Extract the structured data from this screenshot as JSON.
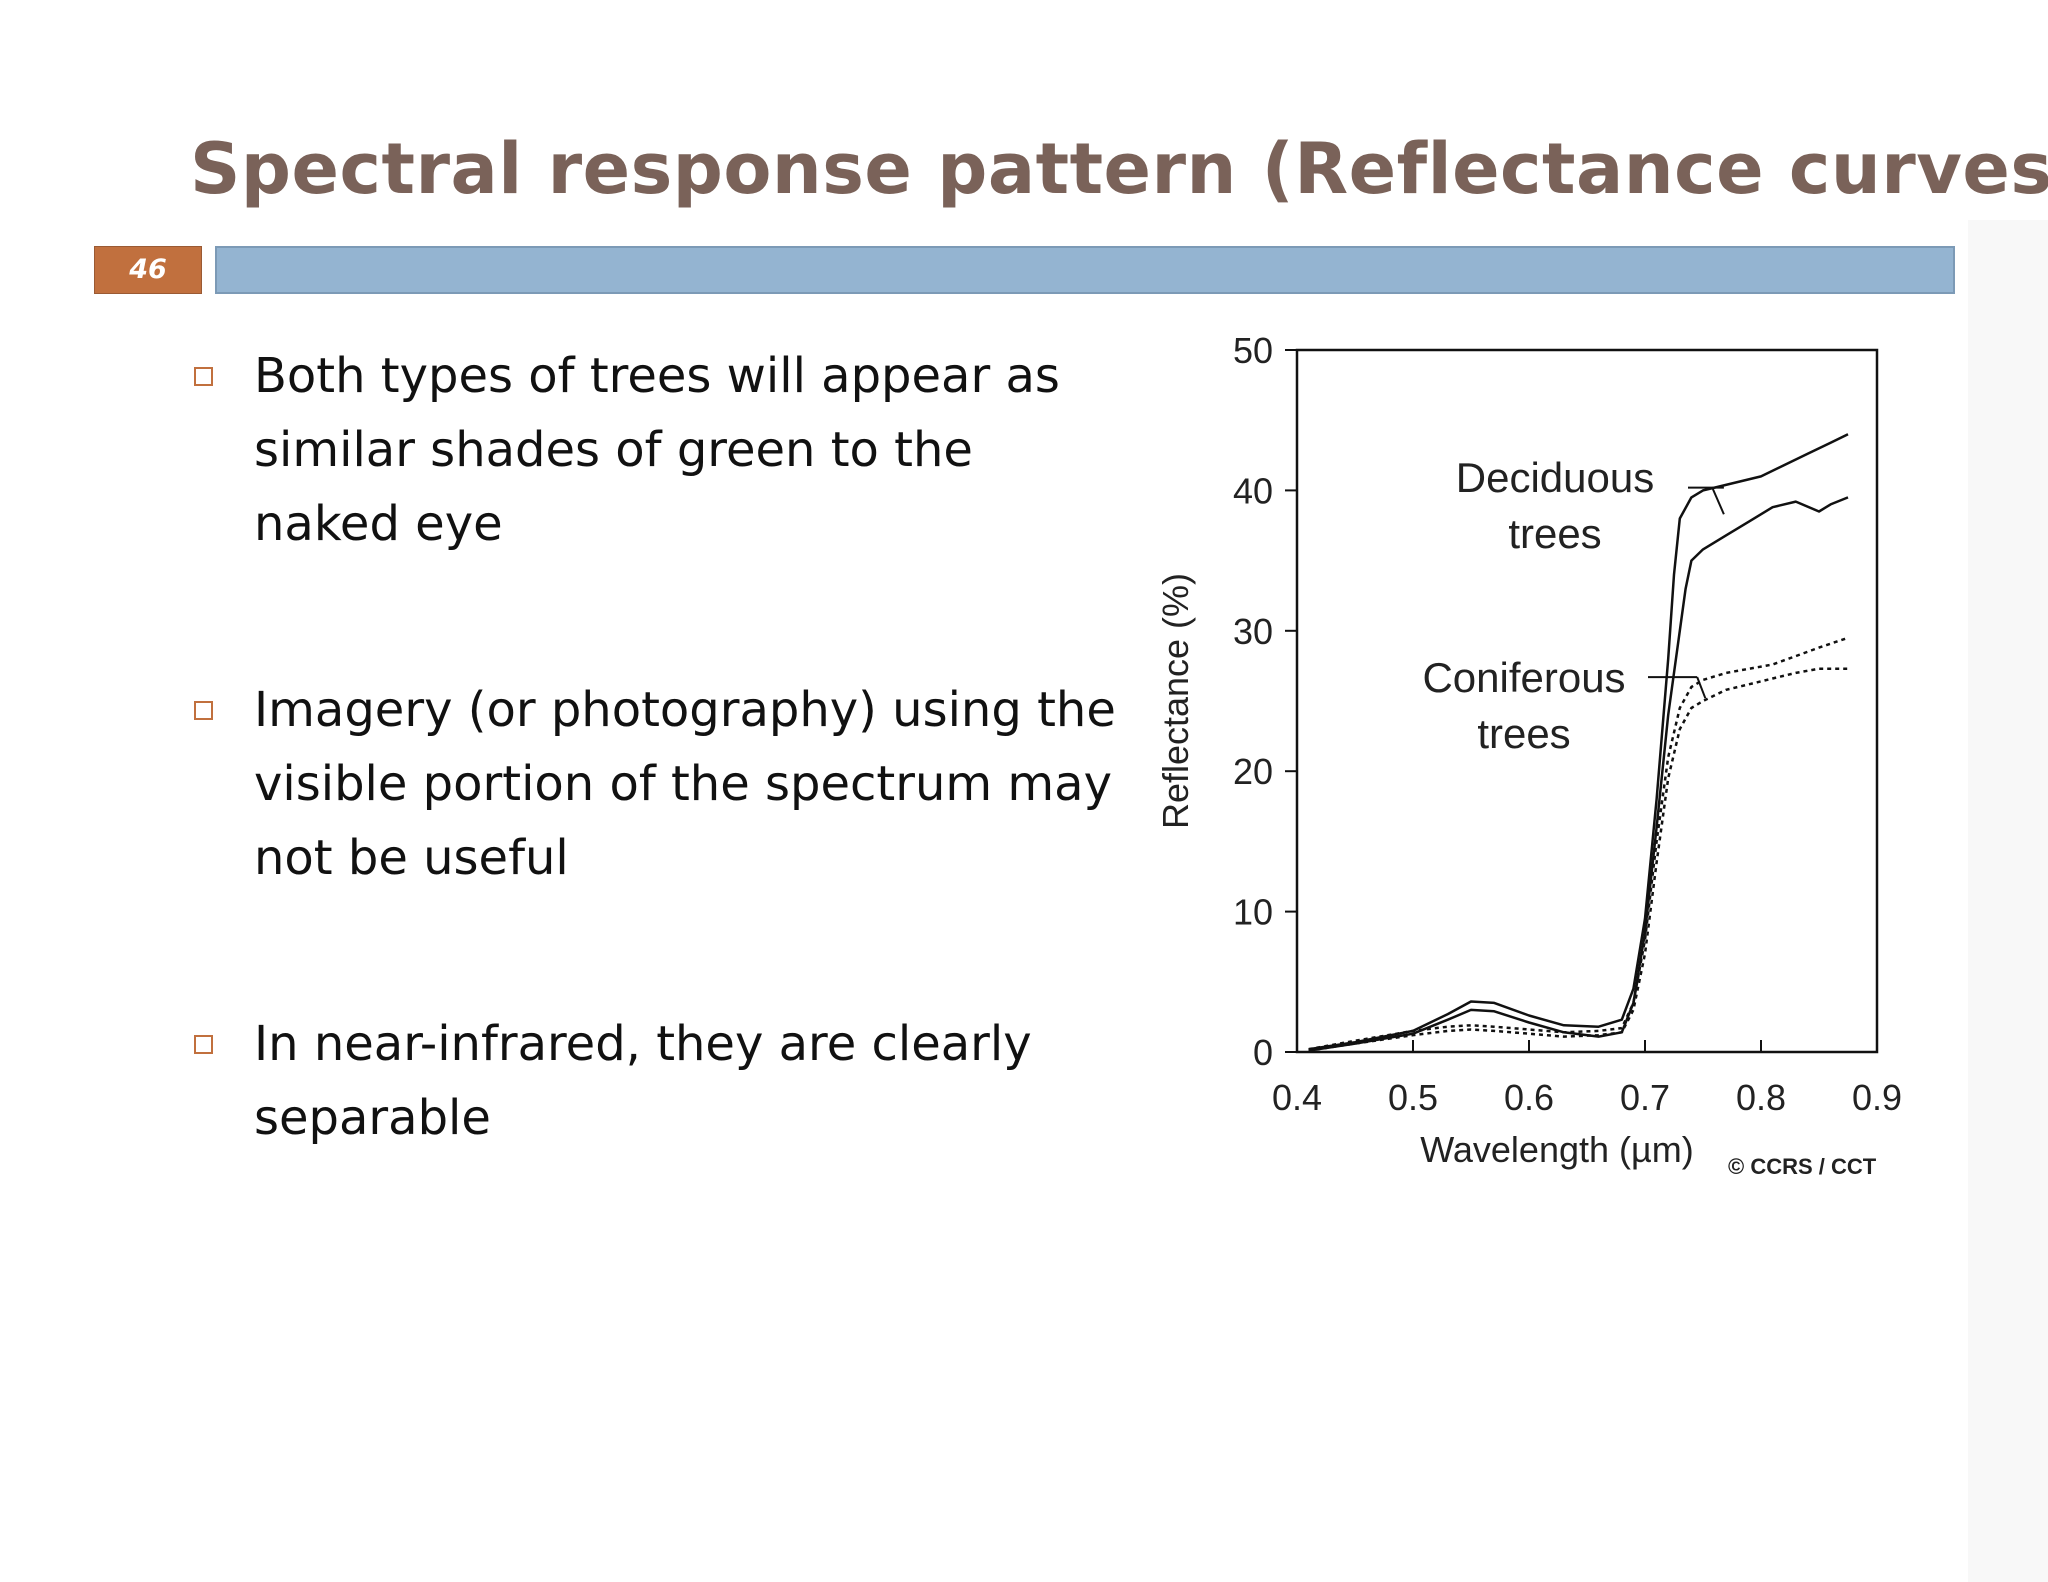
{
  "slide": {
    "title": "Spectral response pattern (Reflectance curves)",
    "page_number": "46",
    "accent_color": "#c1703e",
    "bar_color": "#94b4d1",
    "title_color": "#7a6259"
  },
  "bullets": [
    {
      "text": "Both types of trees will appear as similar shades of green to the naked eye"
    },
    {
      "text": "Imagery (or photography) using the visible portion of the spectrum may not be useful"
    },
    {
      "text": "In near-infrared, they are clearly separable"
    }
  ],
  "chart_data": {
    "type": "line",
    "xlabel": "Wavelength (µm)",
    "ylabel": "Reflectance (%)",
    "xlim": [
      0.4,
      0.9
    ],
    "ylim": [
      0,
      50
    ],
    "xticks": [
      "0.4",
      "0.5",
      "0.6",
      "0.7",
      "0.8",
      "0.9"
    ],
    "yticks": [
      "0",
      "10",
      "20",
      "30",
      "40",
      "50"
    ],
    "grid": false,
    "credit": "© CCRS / CCT",
    "annotations": [
      {
        "line1": "Deciduous",
        "line2": "trees"
      },
      {
        "line1": "Coniferous",
        "line2": "trees"
      }
    ],
    "series": [
      {
        "group": "deciduous",
        "style": "solid",
        "x": [
          0.41,
          0.45,
          0.5,
          0.53,
          0.55,
          0.57,
          0.6,
          0.63,
          0.66,
          0.68,
          0.69,
          0.7,
          0.71,
          0.72,
          0.725,
          0.73,
          0.74,
          0.75,
          0.76,
          0.78,
          0.8,
          0.82,
          0.84,
          0.86,
          0.875
        ],
        "y": [
          0.2,
          0.7,
          1.5,
          2.7,
          3.6,
          3.5,
          2.6,
          1.9,
          1.8,
          2.3,
          4.5,
          9.5,
          18,
          28,
          34,
          38,
          39.5,
          40,
          40.2,
          40.6,
          41,
          41.8,
          42.6,
          43.4,
          44
        ]
      },
      {
        "group": "deciduous",
        "style": "solid",
        "x": [
          0.41,
          0.45,
          0.5,
          0.53,
          0.55,
          0.57,
          0.6,
          0.63,
          0.66,
          0.68,
          0.69,
          0.7,
          0.71,
          0.72,
          0.73,
          0.735,
          0.74,
          0.75,
          0.77,
          0.79,
          0.81,
          0.83,
          0.85,
          0.86,
          0.875
        ],
        "y": [
          0.1,
          0.6,
          1.3,
          2.3,
          3.0,
          2.9,
          2.1,
          1.4,
          1.1,
          1.4,
          3.5,
          8.5,
          16,
          24,
          30,
          33,
          35,
          35.8,
          36.8,
          37.8,
          38.8,
          39.2,
          38.5,
          39,
          39.5
        ]
      },
      {
        "group": "coniferous",
        "style": "dotted",
        "x": [
          0.41,
          0.45,
          0.5,
          0.53,
          0.55,
          0.57,
          0.6,
          0.63,
          0.66,
          0.68,
          0.69,
          0.7,
          0.71,
          0.72,
          0.73,
          0.74,
          0.75,
          0.77,
          0.79,
          0.81,
          0.83,
          0.85,
          0.875
        ],
        "y": [
          0.2,
          0.8,
          1.5,
          1.8,
          1.9,
          1.8,
          1.6,
          1.4,
          1.5,
          1.7,
          3.5,
          8,
          15,
          21,
          24.5,
          26,
          26.5,
          27,
          27.3,
          27.6,
          28.2,
          28.8,
          29.5
        ]
      },
      {
        "group": "coniferous",
        "style": "dotted",
        "x": [
          0.41,
          0.45,
          0.5,
          0.53,
          0.55,
          0.57,
          0.6,
          0.63,
          0.66,
          0.68,
          0.69,
          0.7,
          0.71,
          0.72,
          0.73,
          0.74,
          0.75,
          0.77,
          0.79,
          0.81,
          0.83,
          0.85,
          0.875
        ],
        "y": [
          0.1,
          0.6,
          1.2,
          1.5,
          1.6,
          1.5,
          1.3,
          1.1,
          1.2,
          1.4,
          3,
          7,
          13.5,
          19.5,
          23,
          24.5,
          25,
          25.8,
          26.2,
          26.6,
          27,
          27.3,
          27.3
        ]
      }
    ]
  }
}
